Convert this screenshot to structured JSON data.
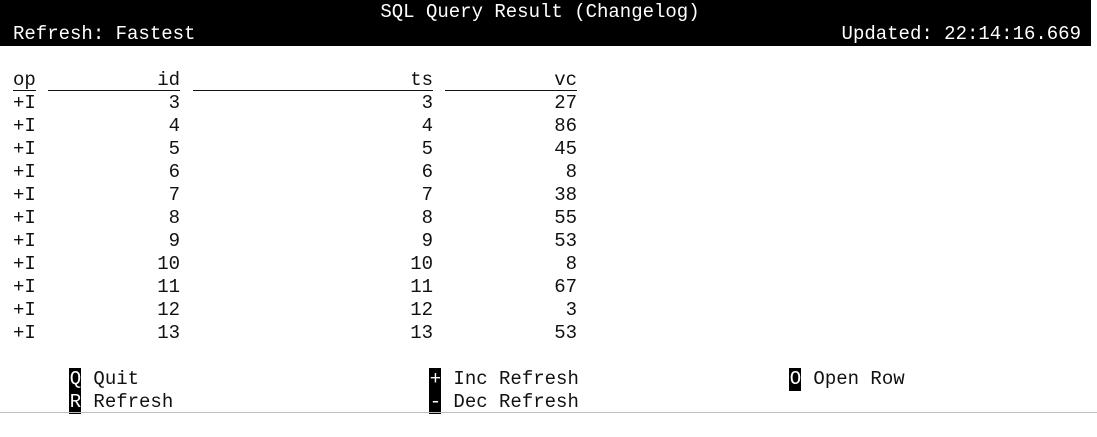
{
  "header": {
    "title": "SQL Query Result (Changelog)",
    "refresh": "Refresh: Fastest",
    "updated": "Updated: 22:14:16.669"
  },
  "table": {
    "columns": [
      "op",
      "id",
      "ts",
      "vc"
    ],
    "rows": [
      [
        "+I",
        "3",
        "3",
        "27"
      ],
      [
        "+I",
        "4",
        "4",
        "86"
      ],
      [
        "+I",
        "5",
        "5",
        "45"
      ],
      [
        "+I",
        "6",
        "6",
        "8"
      ],
      [
        "+I",
        "7",
        "7",
        "38"
      ],
      [
        "+I",
        "8",
        "8",
        "55"
      ],
      [
        "+I",
        "9",
        "9",
        "53"
      ],
      [
        "+I",
        "10",
        "10",
        "8"
      ],
      [
        "+I",
        "11",
        "11",
        "67"
      ],
      [
        "+I",
        "12",
        "12",
        "3"
      ],
      [
        "+I",
        "13",
        "13",
        "53"
      ]
    ]
  },
  "footer": {
    "quit": {
      "key": "Q",
      "label": "Quit"
    },
    "refresh": {
      "key": "R",
      "label": "Refresh"
    },
    "inc_refresh": {
      "key": "+",
      "label": "Inc Refresh"
    },
    "dec_refresh": {
      "key": "-",
      "label": "Dec Refresh"
    },
    "open_row": {
      "key": "O",
      "label": "Open Row"
    }
  },
  "colors": {
    "header_bg": "#000000",
    "header_fg": "#ffffff",
    "text": "#111111",
    "background": "#ffffff"
  }
}
